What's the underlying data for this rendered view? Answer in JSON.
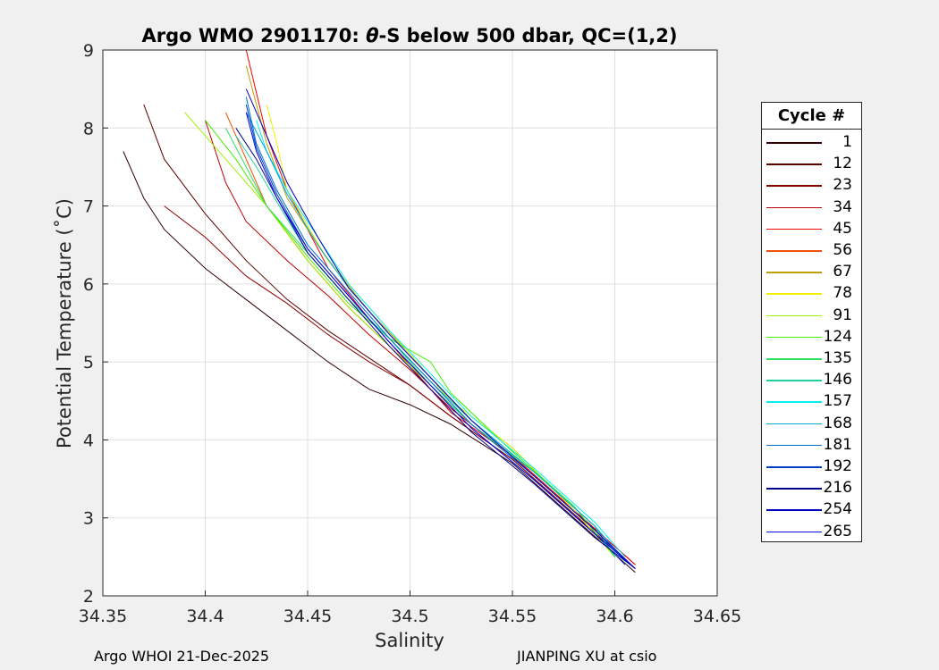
{
  "chart_data": {
    "type": "line",
    "title": "Argo WMO 2901170: θ-S below 500 dbar,  QC=(1,2)",
    "title_prefix": "Argo WMO 2901170: ",
    "title_symbol": "θ",
    "title_suffix": "-S below 500 dbar,  QC=(1,2)",
    "xlabel": "Salinity",
    "ylabel": "Potential Temperature (˚C)",
    "xlim": [
      34.35,
      34.65
    ],
    "ylim": [
      2,
      9
    ],
    "xticks": [
      "34.35",
      "34.4",
      "34.45",
      "34.5",
      "34.55",
      "34.6",
      "34.65"
    ],
    "yticks": [
      "2",
      "3",
      "4",
      "5",
      "6",
      "7",
      "8",
      "9"
    ],
    "grid": true,
    "legend_title": "Cycle #",
    "legend_position": "right",
    "series": [
      {
        "name": "1",
        "color": "#300000",
        "x": [
          34.36,
          34.37,
          34.38,
          34.4,
          34.42,
          34.44,
          34.46,
          34.48,
          34.5,
          34.52,
          34.55,
          34.58,
          34.61
        ],
        "y": [
          7.7,
          7.1,
          6.7,
          6.2,
          5.8,
          5.4,
          5.0,
          4.65,
          4.45,
          4.2,
          3.7,
          3.0,
          2.3
        ]
      },
      {
        "name": "12",
        "color": "#5a0000",
        "x": [
          34.37,
          34.38,
          34.4,
          34.42,
          34.44,
          34.46,
          34.48,
          34.5,
          34.52,
          34.55,
          34.58,
          34.61
        ],
        "y": [
          8.3,
          7.6,
          6.9,
          6.3,
          5.8,
          5.4,
          5.05,
          4.7,
          4.3,
          3.75,
          3.05,
          2.35
        ]
      },
      {
        "name": "23",
        "color": "#8c0000",
        "x": [
          34.38,
          34.4,
          34.42,
          34.44,
          34.46,
          34.48,
          34.5,
          34.52,
          34.55,
          34.58,
          34.61
        ],
        "y": [
          7.0,
          6.6,
          6.1,
          5.75,
          5.35,
          5.0,
          4.7,
          4.3,
          3.75,
          3.05,
          2.35
        ]
      },
      {
        "name": "34",
        "color": "#c00000",
        "x": [
          34.4,
          34.41,
          34.42,
          34.44,
          34.46,
          34.48,
          34.5,
          34.52,
          34.55,
          34.58,
          34.61
        ],
        "y": [
          8.1,
          7.3,
          6.8,
          6.3,
          5.85,
          5.35,
          4.9,
          4.4,
          3.8,
          3.1,
          2.4
        ]
      },
      {
        "name": "45",
        "color": "#f00000",
        "x": [
          34.42,
          34.43,
          34.44,
          34.46,
          34.48,
          34.5,
          34.52,
          34.55,
          34.58,
          34.61
        ],
        "y": [
          9.0,
          7.9,
          7.2,
          6.2,
          5.55,
          4.95,
          4.35,
          3.8,
          3.1,
          2.4
        ]
      },
      {
        "name": "56",
        "color": "#f05000",
        "x": [
          34.41,
          34.42,
          34.43,
          34.45,
          34.47,
          34.49,
          34.51,
          34.53,
          34.56,
          34.59,
          34.6
        ],
        "y": [
          8.2,
          7.6,
          7.0,
          6.3,
          5.7,
          5.2,
          4.7,
          4.2,
          3.6,
          2.9,
          2.5
        ]
      },
      {
        "name": "67",
        "color": "#c0a000",
        "x": [
          34.42,
          34.43,
          34.44,
          34.46,
          34.48,
          34.5,
          34.52,
          34.55,
          34.58,
          34.6
        ],
        "y": [
          8.8,
          7.8,
          7.1,
          6.3,
          5.65,
          5.1,
          4.5,
          3.9,
          3.1,
          2.5
        ]
      },
      {
        "name": "78",
        "color": "#f0f000",
        "x": [
          34.43,
          34.435,
          34.44,
          34.46,
          34.48,
          34.5,
          34.52,
          34.55,
          34.58,
          34.6
        ],
        "y": [
          8.3,
          7.8,
          7.2,
          6.3,
          5.7,
          5.1,
          4.5,
          3.9,
          3.1,
          2.5
        ]
      },
      {
        "name": "91",
        "color": "#a0f000",
        "x": [
          34.39,
          34.41,
          34.43,
          34.45,
          34.47,
          34.49,
          34.51,
          34.53,
          34.56,
          34.59,
          34.6
        ],
        "y": [
          8.2,
          7.6,
          7.0,
          6.3,
          5.7,
          5.2,
          4.7,
          4.2,
          3.6,
          2.9,
          2.5
        ]
      },
      {
        "name": "124",
        "color": "#40f000",
        "x": [
          34.4,
          34.415,
          34.43,
          34.45,
          34.47,
          34.49,
          34.51,
          34.52,
          34.55,
          34.58,
          34.6
        ],
        "y": [
          8.1,
          7.6,
          7.0,
          6.35,
          5.75,
          5.3,
          5.0,
          4.6,
          3.85,
          3.15,
          2.5
        ]
      },
      {
        "name": "135",
        "color": "#30e060",
        "x": [
          34.41,
          34.42,
          34.43,
          34.45,
          34.47,
          34.49,
          34.51,
          34.53,
          34.56,
          34.59,
          34.6
        ],
        "y": [
          8.0,
          7.5,
          7.0,
          6.4,
          5.8,
          5.3,
          4.7,
          4.2,
          3.6,
          2.9,
          2.5
        ]
      },
      {
        "name": "146",
        "color": "#20d0a0",
        "x": [
          34.415,
          34.425,
          34.435,
          34.45,
          34.47,
          34.49,
          34.51,
          34.53,
          34.56,
          34.59,
          34.6
        ],
        "y": [
          7.9,
          7.5,
          7.05,
          6.4,
          5.8,
          5.3,
          4.75,
          4.25,
          3.6,
          2.9,
          2.5
        ]
      },
      {
        "name": "157",
        "color": "#00f0f0",
        "x": [
          34.425,
          34.43,
          34.44,
          34.455,
          34.47,
          34.49,
          34.51,
          34.53,
          34.56,
          34.59,
          34.605
        ],
        "y": [
          8.1,
          7.7,
          7.2,
          6.6,
          6.0,
          5.4,
          4.85,
          4.3,
          3.65,
          2.95,
          2.5
        ]
      },
      {
        "name": "168",
        "color": "#00a8e0",
        "x": [
          34.42,
          34.43,
          34.44,
          34.455,
          34.47,
          34.49,
          34.51,
          34.53,
          34.56,
          34.59,
          34.605
        ],
        "y": [
          8.2,
          7.7,
          7.15,
          6.5,
          5.95,
          5.35,
          4.8,
          4.25,
          3.6,
          2.9,
          2.45
        ]
      },
      {
        "name": "181",
        "color": "#0070d0",
        "x": [
          34.42,
          34.425,
          34.435,
          34.45,
          34.47,
          34.49,
          34.51,
          34.53,
          34.56,
          34.59,
          34.605
        ],
        "y": [
          8.4,
          7.8,
          7.2,
          6.5,
          5.9,
          5.3,
          4.75,
          4.2,
          3.55,
          2.85,
          2.45
        ]
      },
      {
        "name": "192",
        "color": "#0040c0",
        "x": [
          34.42,
          34.425,
          34.435,
          34.45,
          34.47,
          34.49,
          34.51,
          34.53,
          34.56,
          34.59,
          34.605
        ],
        "y": [
          8.3,
          7.75,
          7.15,
          6.45,
          5.85,
          5.25,
          4.7,
          4.15,
          3.5,
          2.8,
          2.4
        ]
      },
      {
        "name": "216",
        "color": "#000090",
        "x": [
          34.415,
          34.425,
          34.435,
          34.45,
          34.47,
          34.49,
          34.51,
          34.53,
          34.56,
          34.59,
          34.61
        ],
        "y": [
          8.0,
          7.6,
          7.1,
          6.4,
          5.8,
          5.2,
          4.65,
          4.1,
          3.45,
          2.75,
          2.35
        ]
      },
      {
        "name": "254",
        "color": "#0000c0",
        "x": [
          34.42,
          34.43,
          34.44,
          34.455,
          34.47,
          34.49,
          34.51,
          34.53,
          34.56,
          34.59,
          34.61
        ],
        "y": [
          8.5,
          7.9,
          7.3,
          6.6,
          5.95,
          5.35,
          4.8,
          4.25,
          3.55,
          2.85,
          2.35
        ]
      },
      {
        "name": "265",
        "color": "#0000e0",
        "x": [
          34.42,
          34.425,
          34.435,
          34.45,
          34.47,
          34.49,
          34.51,
          34.53,
          34.56,
          34.59,
          34.61
        ],
        "y": [
          8.2,
          7.7,
          7.1,
          6.45,
          5.85,
          5.25,
          4.7,
          4.15,
          3.5,
          2.8,
          2.35
        ]
      }
    ]
  },
  "footer": {
    "left": "Argo WHOI 21-Dec-2025",
    "right": "JIANPING XU at csio"
  }
}
